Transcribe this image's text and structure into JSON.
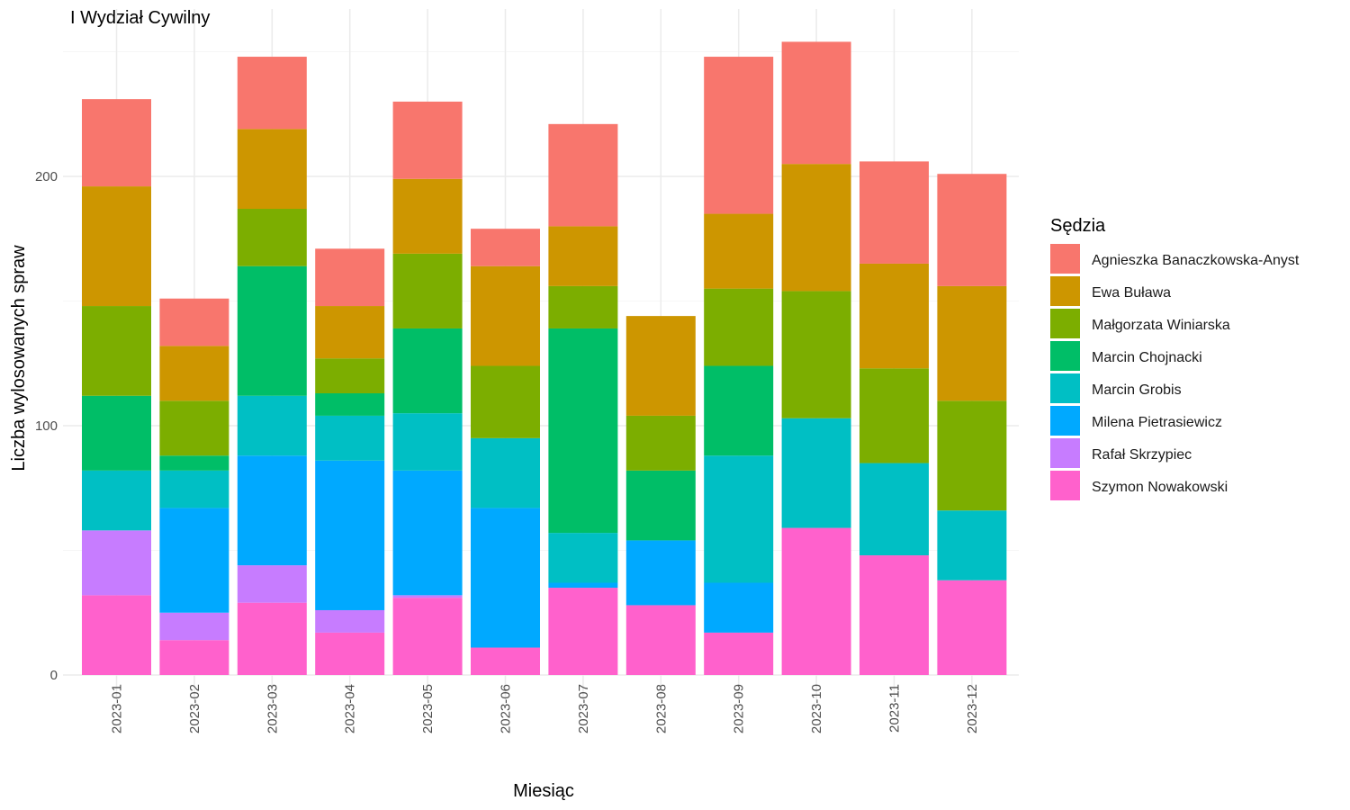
{
  "chart_data": {
    "type": "bar",
    "stacked": true,
    "title": "I Wydział Cywilny",
    "xlabel": "Miesiąc",
    "ylabel": "Liczba wylosowanych spraw",
    "ylim": [
      0,
      257
    ],
    "yticks": [
      0,
      100,
      200
    ],
    "grid": true,
    "legend_position": "right",
    "legend_title": "Sędzia",
    "categories": [
      "2023-01",
      "2023-02",
      "2023-03",
      "2023-04",
      "2023-05",
      "2023-06",
      "2023-07",
      "2023-08",
      "2023-09",
      "2023-10",
      "2023-11",
      "2023-12"
    ],
    "series": [
      {
        "name": "Agnieszka Banaczkowska-Anyst",
        "color": "#F8766D",
        "values": [
          35,
          19,
          29,
          23,
          31,
          15,
          41,
          0,
          63,
          49,
          41,
          45
        ]
      },
      {
        "name": "Ewa Buława",
        "color": "#CD9600",
        "values": [
          48,
          22,
          32,
          21,
          30,
          40,
          24,
          40,
          30,
          51,
          42,
          46
        ]
      },
      {
        "name": "Małgorzata Winiarska",
        "color": "#7CAE00",
        "values": [
          36,
          22,
          23,
          14,
          30,
          29,
          17,
          22,
          31,
          51,
          38,
          44
        ]
      },
      {
        "name": "Marcin Chojnacki",
        "color": "#00BE67",
        "values": [
          30,
          6,
          52,
          9,
          34,
          0,
          82,
          28,
          36,
          0,
          0,
          0
        ]
      },
      {
        "name": "Marcin Grobis",
        "color": "#00BFC4",
        "values": [
          24,
          15,
          24,
          18,
          23,
          28,
          20,
          0,
          51,
          44,
          37,
          28
        ]
      },
      {
        "name": "Milena Pietrasiewicz",
        "color": "#00A9FF",
        "values": [
          0,
          42,
          44,
          60,
          50,
          56,
          2,
          26,
          20,
          0,
          0,
          0
        ]
      },
      {
        "name": "Rafał Skrzypiec",
        "color": "#C77CFF",
        "values": [
          26,
          11,
          15,
          9,
          1,
          0,
          0,
          0,
          0,
          0,
          0,
          0
        ]
      },
      {
        "name": "Szymon Nowakowski",
        "color": "#FF61CC",
        "values": [
          32,
          14,
          29,
          17,
          31,
          11,
          35,
          28,
          17,
          59,
          48,
          38
        ]
      }
    ]
  }
}
